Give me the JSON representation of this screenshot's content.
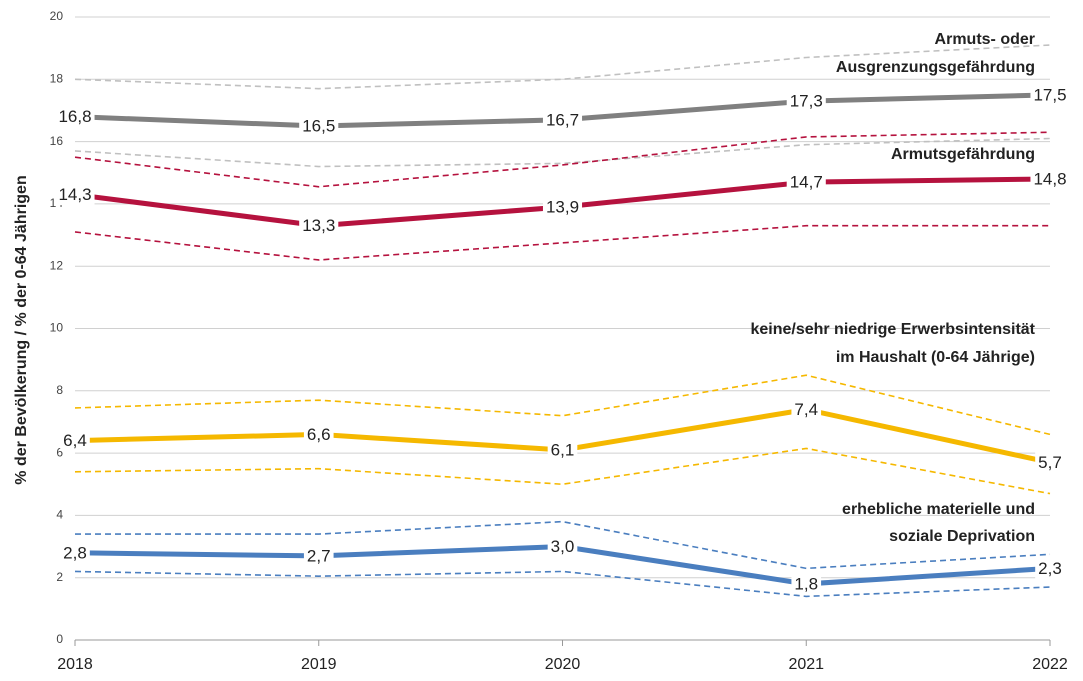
{
  "chart_data": {
    "type": "line",
    "y_label": "% der Bevölkerung / % der 0-64 Jährigen",
    "categories": [
      "2018",
      "2019",
      "2020",
      "2021",
      "2022"
    ],
    "ylim": [
      0,
      20
    ],
    "yticks": [
      0,
      2,
      4,
      6,
      8,
      10,
      12,
      14,
      16,
      18,
      20
    ],
    "grid": true,
    "series": [
      {
        "name": [
          "Armuts- oder",
          "Ausgrenzungsgefährdung"
        ],
        "color": "#808080",
        "band_color": "#c0c0c0",
        "values": [
          16.8,
          16.5,
          16.7,
          17.3,
          17.5
        ],
        "value_labels": [
          "16,8",
          "16,5",
          "16,7",
          "17,3",
          "17,5"
        ],
        "upper": [
          18.0,
          17.7,
          18.0,
          18.7,
          19.1
        ],
        "lower": [
          15.7,
          15.2,
          15.3,
          15.9,
          16.1
        ]
      },
      {
        "name": [
          "Armutsgefährdung"
        ],
        "color": "#b5123e",
        "band_color": "#b5123e",
        "values": [
          14.3,
          13.3,
          13.9,
          14.7,
          14.8
        ],
        "value_labels": [
          "14,3",
          "13,3",
          "13,9",
          "14,7",
          "14,8"
        ],
        "upper": [
          15.5,
          14.55,
          15.25,
          16.15,
          16.3
        ],
        "lower": [
          13.1,
          12.2,
          12.75,
          13.3,
          13.3
        ]
      },
      {
        "name": [
          "keine/sehr niedrige Erwerbsintensität",
          "im Haushalt (0-64 Jährige)"
        ],
        "color": "#f5b800",
        "band_color": "#f5b800",
        "values": [
          6.4,
          6.6,
          6.1,
          7.4,
          5.7
        ],
        "value_labels": [
          "6,4",
          "6,6",
          "6,1",
          "7,4",
          "5,7"
        ],
        "upper": [
          7.45,
          7.7,
          7.2,
          8.5,
          6.6
        ],
        "lower": [
          5.4,
          5.5,
          5.0,
          6.15,
          4.7
        ]
      },
      {
        "name": [
          "erhebliche materielle und",
          "soziale Deprivation"
        ],
        "color": "#4a7ebf",
        "band_color": "#4a7ebf",
        "values": [
          2.8,
          2.7,
          3.0,
          1.8,
          2.3
        ],
        "value_labels": [
          "2,8",
          "2,7",
          "3,0",
          "1,8",
          "2,3"
        ],
        "upper": [
          3.4,
          3.4,
          3.8,
          2.3,
          2.75
        ],
        "lower": [
          2.2,
          2.05,
          2.2,
          1.4,
          1.7
        ]
      }
    ]
  }
}
